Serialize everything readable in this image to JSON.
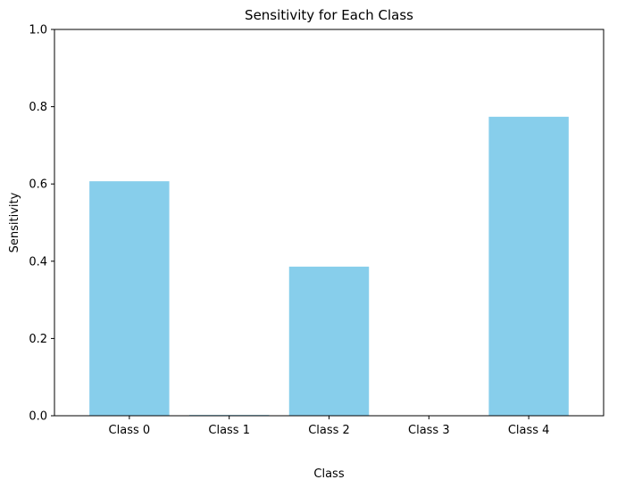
{
  "chart_data": {
    "type": "bar",
    "title": "Sensitivity for Each Class",
    "xlabel": "Class",
    "ylabel": "Sensitivity",
    "categories": [
      "Class 0",
      "Class 1",
      "Class 2",
      "Class 3",
      "Class 4"
    ],
    "values": [
      0.607,
      0.002,
      0.386,
      0.0,
      0.774
    ],
    "ylim": [
      0,
      1
    ],
    "yticks": [
      0.0,
      0.2,
      0.4,
      0.6,
      0.8,
      1.0
    ],
    "ytick_labels": [
      "0.0",
      "0.2",
      "0.4",
      "0.6",
      "0.8",
      "1.0"
    ],
    "grid": false,
    "colors": {
      "bar": "#87ceeb",
      "axis": "#000000",
      "background": "#ffffff"
    }
  }
}
